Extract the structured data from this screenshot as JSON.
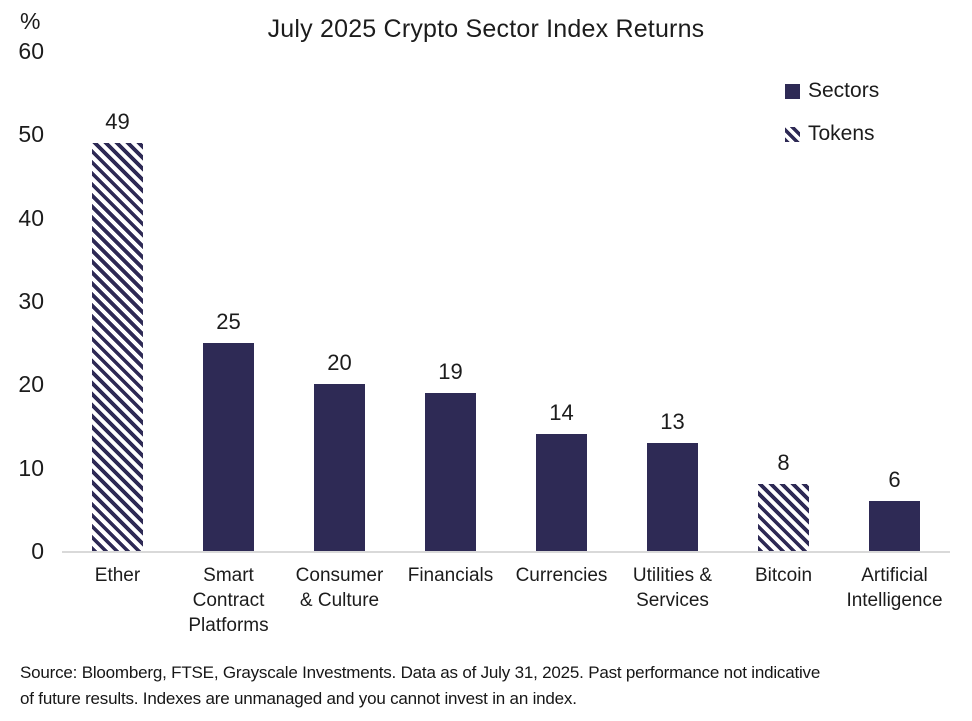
{
  "chart_data": {
    "type": "bar",
    "title": "July 2025 Crypto Sector Index Returns",
    "unit_label": "%",
    "xlabel": "",
    "ylabel": "%",
    "ylim": [
      0,
      60
    ],
    "yticks": [
      60,
      50,
      40,
      30,
      20,
      10,
      0
    ],
    "grid": false,
    "legend_position": "top-right",
    "legend": [
      {
        "label": "Sectors",
        "style": "solid"
      },
      {
        "label": "Tokens",
        "style": "hatched"
      }
    ],
    "categories": [
      "Ether",
      "Smart\nContract\nPlatforms",
      "Consumer\n& Culture",
      "Financials",
      "Currencies",
      "Utilities &\nServices",
      "Bitcoin",
      "Artificial\nIntelligence"
    ],
    "values": [
      49,
      25,
      20,
      19,
      14,
      13,
      8,
      6
    ],
    "bar_styles": [
      "hatched",
      "solid",
      "solid",
      "solid",
      "solid",
      "solid",
      "hatched",
      "solid"
    ]
  },
  "colors": {
    "bar_navy": "#2e2a55",
    "baseline_gray": "#d9d9d9",
    "text_dark": "#1c1c1c"
  },
  "footer": {
    "text": "Source: Bloomberg, FTSE, Grayscale Investments. Data as of July 31, 2025. Past performance not indicative\nof future results. Indexes are unmanaged and you cannot invest in an index."
  }
}
